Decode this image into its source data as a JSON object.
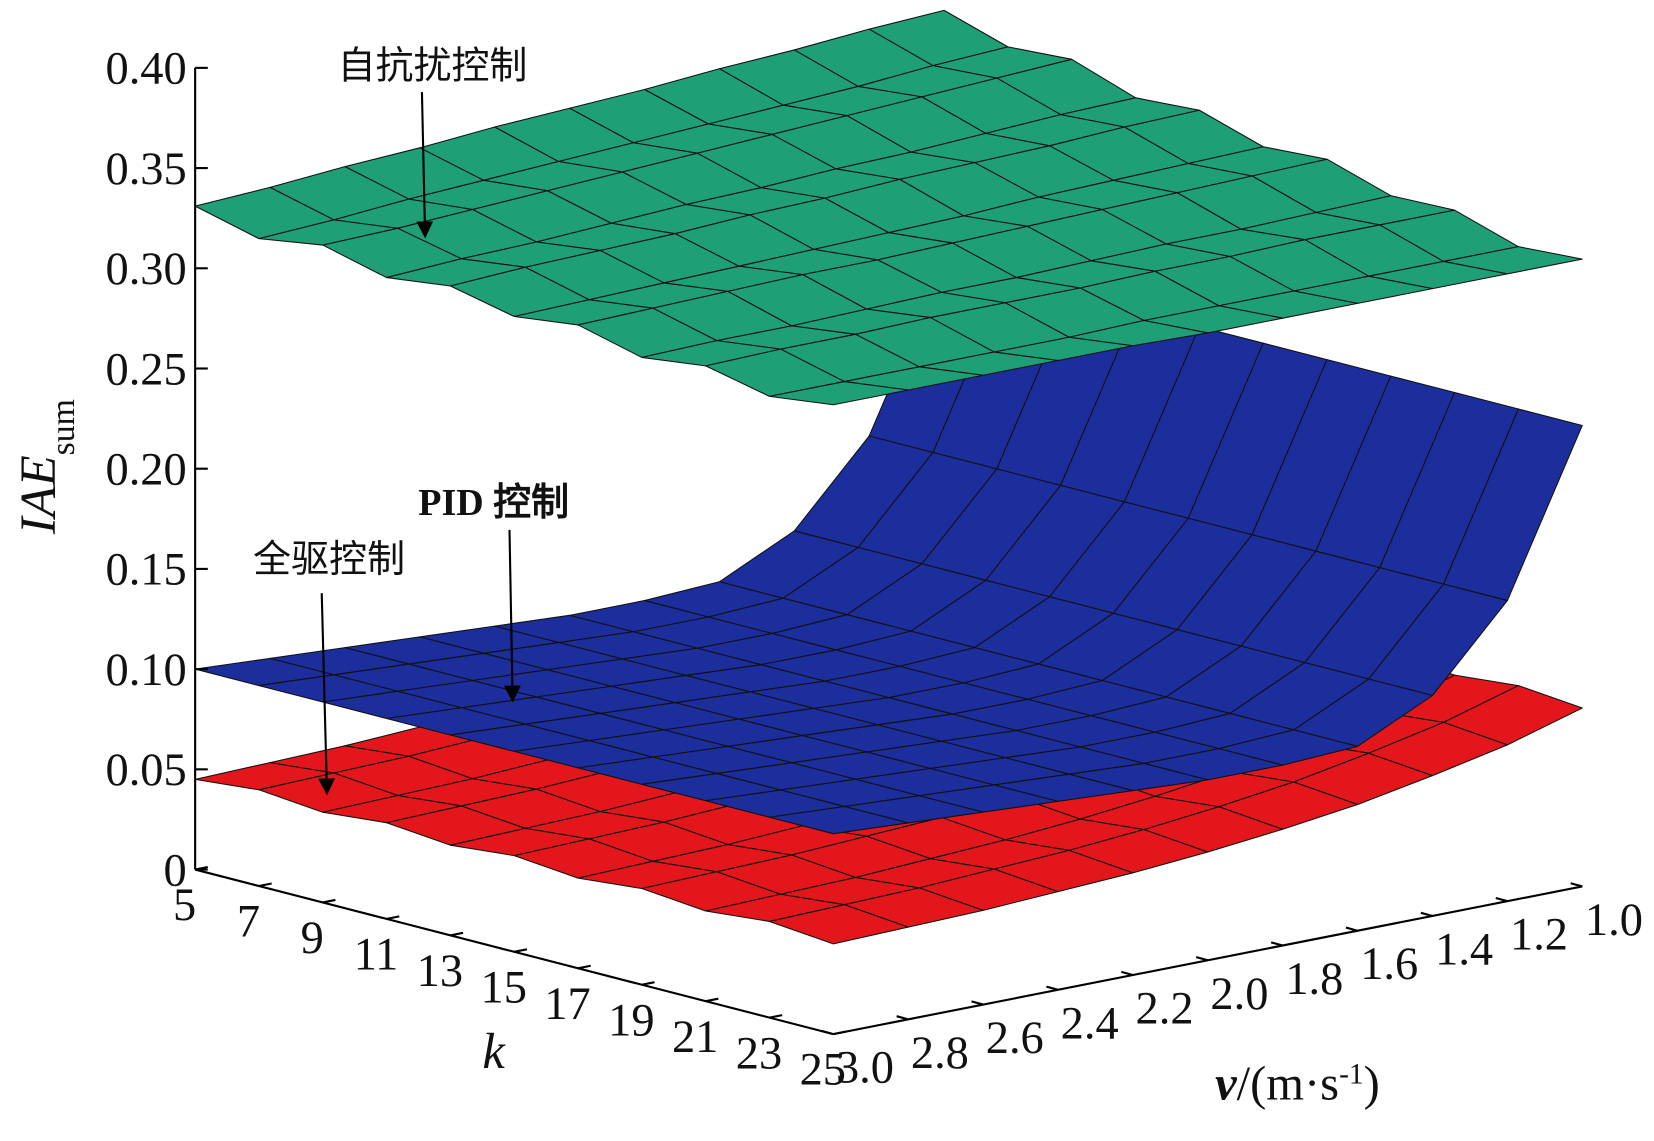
{
  "chart_data": {
    "type": "surface3d",
    "zlabel": "IAE",
    "zlabel_sub": "sum",
    "xlabel": "k",
    "ylabel": "v",
    "ylabel_unit": "/(m·s",
    "ylabel_sup": "-1",
    "ylabel_end": ")",
    "k": [
      5,
      7,
      9,
      11,
      13,
      15,
      17,
      19,
      21,
      23,
      25
    ],
    "v": [
      3,
      2.8,
      2.6,
      2.4,
      2.2,
      2,
      1.8,
      1.6,
      1.4,
      1.2,
      1
    ],
    "zlim": [
      0,
      0.4
    ],
    "kticks": [
      5,
      7,
      9,
      11,
      13,
      15,
      17,
      19,
      21,
      23,
      25
    ],
    "vticks": [
      {
        "value": 3,
        "label": "3.0"
      },
      2.8,
      2.6,
      2.4,
      2.2,
      {
        "value": 2,
        "label": "2.0"
      },
      1.8,
      1.6,
      1.4,
      1.2,
      {
        "value": 1,
        "label": "1.0"
      }
    ],
    "zticks": [
      0,
      0.05,
      {
        "value": 0.1,
        "label": "0.10"
      },
      0.15,
      {
        "value": 0.2,
        "label": "0.20"
      },
      0.25,
      {
        "value": 0.3,
        "label": "0.30"
      },
      0.35,
      {
        "value": 0.4,
        "label": "0.40"
      }
    ],
    "series": [
      {
        "name": "全驱控制",
        "color": "#e3161c",
        "z": [
          [
            0.045,
            0.046,
            0.047,
            0.049,
            0.051,
            0.054,
            0.058,
            0.063,
            0.07,
            0.078,
            0.089
          ],
          [
            0.048,
            0.049,
            0.05,
            0.052,
            0.054,
            0.057,
            0.061,
            0.066,
            0.073,
            0.081,
            0.092
          ],
          [
            0.045,
            0.046,
            0.047,
            0.049,
            0.051,
            0.054,
            0.058,
            0.063,
            0.07,
            0.078,
            0.089
          ],
          [
            0.048,
            0.049,
            0.05,
            0.052,
            0.054,
            0.057,
            0.061,
            0.066,
            0.073,
            0.081,
            0.092
          ],
          [
            0.045,
            0.046,
            0.047,
            0.049,
            0.051,
            0.054,
            0.058,
            0.063,
            0.07,
            0.078,
            0.089
          ],
          [
            0.048,
            0.049,
            0.05,
            0.052,
            0.054,
            0.057,
            0.061,
            0.066,
            0.073,
            0.081,
            0.092
          ],
          [
            0.045,
            0.046,
            0.047,
            0.049,
            0.051,
            0.054,
            0.058,
            0.063,
            0.07,
            0.078,
            0.089
          ],
          [
            0.048,
            0.049,
            0.05,
            0.052,
            0.054,
            0.057,
            0.061,
            0.066,
            0.073,
            0.081,
            0.092
          ],
          [
            0.045,
            0.046,
            0.047,
            0.049,
            0.051,
            0.054,
            0.058,
            0.063,
            0.07,
            0.078,
            0.089
          ],
          [
            0.048,
            0.049,
            0.05,
            0.052,
            0.054,
            0.057,
            0.061,
            0.066,
            0.073,
            0.081,
            0.092
          ],
          [
            0.045,
            0.046,
            0.047,
            0.049,
            0.051,
            0.054,
            0.058,
            0.063,
            0.07,
            0.078,
            0.089
          ]
        ]
      },
      {
        "name": "PID 控制",
        "color": "#1c2d9c",
        "z": [
          [
            0.1,
            0.098,
            0.096,
            0.094,
            0.092,
            0.09,
            0.09,
            0.092,
            0.11,
            0.15,
            0.23
          ],
          [
            0.1,
            0.098,
            0.096,
            0.094,
            0.092,
            0.09,
            0.09,
            0.092,
            0.11,
            0.15,
            0.23
          ],
          [
            0.1,
            0.098,
            0.096,
            0.094,
            0.092,
            0.09,
            0.09,
            0.092,
            0.11,
            0.15,
            0.23
          ],
          [
            0.1,
            0.098,
            0.096,
            0.094,
            0.092,
            0.09,
            0.09,
            0.092,
            0.11,
            0.15,
            0.23
          ],
          [
            0.1,
            0.098,
            0.096,
            0.094,
            0.092,
            0.09,
            0.09,
            0.092,
            0.11,
            0.15,
            0.23
          ],
          [
            0.1,
            0.098,
            0.096,
            0.094,
            0.092,
            0.09,
            0.09,
            0.092,
            0.11,
            0.15,
            0.23
          ],
          [
            0.1,
            0.098,
            0.096,
            0.094,
            0.092,
            0.09,
            0.09,
            0.092,
            0.11,
            0.15,
            0.23
          ],
          [
            0.1,
            0.098,
            0.096,
            0.094,
            0.092,
            0.09,
            0.09,
            0.092,
            0.11,
            0.15,
            0.23
          ],
          [
            0.1,
            0.098,
            0.096,
            0.094,
            0.092,
            0.09,
            0.09,
            0.092,
            0.11,
            0.15,
            0.23
          ],
          [
            0.1,
            0.098,
            0.096,
            0.094,
            0.092,
            0.09,
            0.09,
            0.092,
            0.11,
            0.15,
            0.23
          ],
          [
            0.1,
            0.098,
            0.096,
            0.094,
            0.092,
            0.09,
            0.09,
            0.092,
            0.11,
            0.15,
            0.23
          ]
        ]
      },
      {
        "name": "自抗扰控制",
        "color": "#1f9f76",
        "z": [
          [
            0.331,
            0.333,
            0.336,
            0.338,
            0.341,
            0.343,
            0.345,
            0.348,
            0.35,
            0.353,
            0.355
          ],
          [
            0.323,
            0.325,
            0.328,
            0.33,
            0.332,
            0.334,
            0.336,
            0.338,
            0.34,
            0.343,
            0.345
          ],
          [
            0.328,
            0.329,
            0.331,
            0.333,
            0.335,
            0.337,
            0.339,
            0.341,
            0.343,
            0.345,
            0.347
          ],
          [
            0.32,
            0.322,
            0.323,
            0.325,
            0.327,
            0.328,
            0.33,
            0.331,
            0.333,
            0.335,
            0.336
          ],
          [
            0.324,
            0.326,
            0.327,
            0.328,
            0.33,
            0.331,
            0.333,
            0.334,
            0.335,
            0.337,
            0.338
          ],
          [
            0.317,
            0.318,
            0.319,
            0.32,
            0.321,
            0.322,
            0.323,
            0.325,
            0.326,
            0.327,
            0.328
          ],
          [
            0.321,
            0.322,
            0.323,
            0.324,
            0.324,
            0.325,
            0.326,
            0.327,
            0.328,
            0.329,
            0.33
          ],
          [
            0.313,
            0.314,
            0.314,
            0.315,
            0.316,
            0.316,
            0.317,
            0.318,
            0.318,
            0.319,
            0.32
          ],
          [
            0.317,
            0.318,
            0.318,
            0.319,
            0.319,
            0.319,
            0.32,
            0.32,
            0.321,
            0.321,
            0.321
          ],
          [
            0.31,
            0.31,
            0.31,
            0.31,
            0.31,
            0.311,
            0.311,
            0.311,
            0.311,
            0.311,
            0.311
          ],
          [
            0.314,
            0.314,
            0.314,
            0.314,
            0.314,
            0.313,
            0.313,
            0.313,
            0.313,
            0.313,
            0.313
          ]
        ]
      }
    ]
  }
}
